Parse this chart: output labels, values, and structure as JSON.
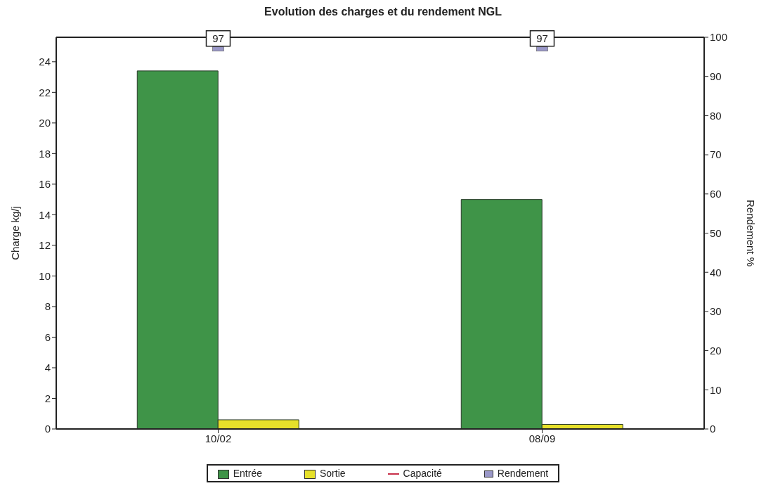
{
  "chart_data": {
    "type": "bar",
    "title": "Evolution des charges et du rendement NGL",
    "ylabel": "Charge kg/j",
    "y2label": "Rendement %",
    "categories": [
      "10/02",
      "08/09"
    ],
    "series": [
      {
        "name": "Entrée",
        "color": "#3f9448",
        "values": [
          23.4,
          15.0
        ]
      },
      {
        "name": "Sortie",
        "color": "#e6e02a",
        "values": [
          0.6,
          0.3
        ]
      },
      {
        "name": "Capacité",
        "type": "line",
        "color": "#c8304a",
        "values": [
          null,
          null
        ]
      },
      {
        "name": "Rendement",
        "type": "scatter",
        "axis": "y2",
        "marker": "square",
        "color": "#9a98c8",
        "values": [
          97,
          97
        ],
        "value_labels": [
          "97",
          "97"
        ]
      }
    ],
    "ylim": [
      0,
      25.6
    ],
    "yticks": [
      0,
      2,
      4,
      6,
      8,
      10,
      12,
      14,
      16,
      18,
      20,
      22,
      24
    ],
    "y2lim": [
      0,
      100
    ],
    "y2ticks": [
      0,
      10,
      20,
      30,
      40,
      50,
      60,
      70,
      80,
      90,
      100
    ],
    "grid": false,
    "legend": "bottom"
  }
}
